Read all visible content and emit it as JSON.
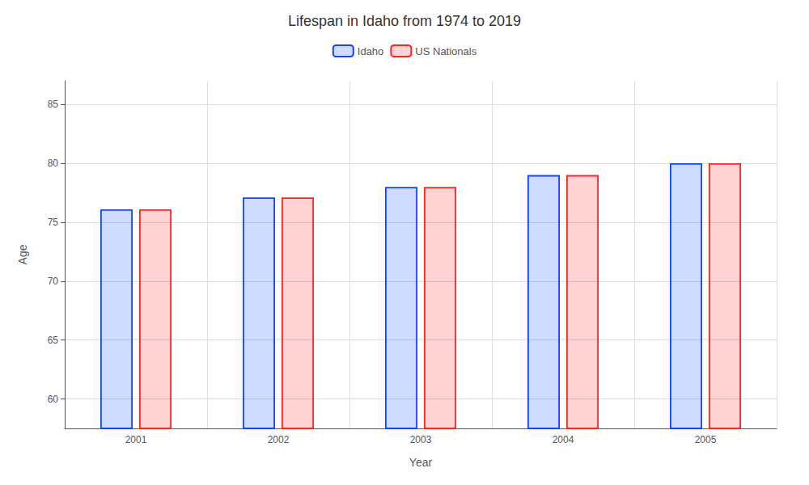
{
  "chart_data": {
    "type": "bar",
    "title": "Lifespan in Idaho from 1974 to 2019",
    "x_label": "Year",
    "y_label": "Age",
    "categories": [
      "2001",
      "2002",
      "2003",
      "2004",
      "2005"
    ],
    "series": [
      {
        "name": "Idaho",
        "color": "#1144ff",
        "values": [
          76.1,
          77.1,
          78.0,
          79.0,
          80.0
        ]
      },
      {
        "name": "US Nationals",
        "color": "#ff2222",
        "values": [
          76.1,
          77.1,
          78.0,
          79.0,
          80.0
        ]
      }
    ],
    "ylim": [
      57.5,
      87
    ],
    "yticks": [
      60,
      65,
      70,
      75,
      80,
      85
    ],
    "grid": true,
    "legend": "top"
  }
}
